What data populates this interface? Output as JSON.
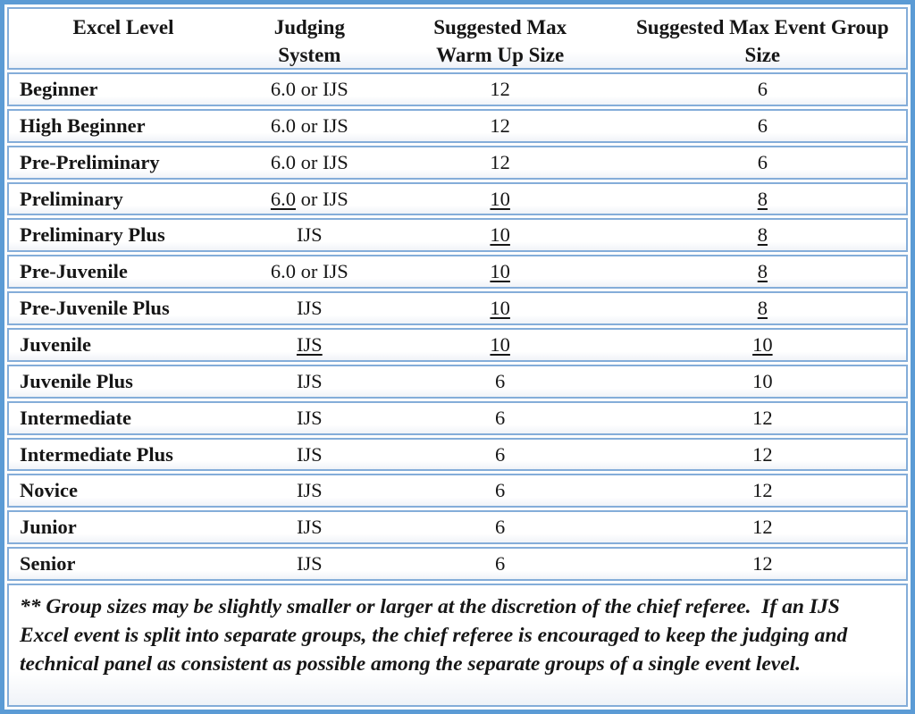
{
  "table": {
    "columns": [
      "Excel Level",
      "Judging\nSystem",
      "Suggested Max\nWarm Up Size",
      "Suggested Max Event Group\nSize"
    ],
    "rows": [
      {
        "level": "Beginner",
        "judging": [
          [
            "6.0 or IJS",
            false
          ]
        ],
        "warmup": [
          "12",
          false
        ],
        "group": [
          "6",
          false
        ]
      },
      {
        "level": "High Beginner",
        "judging": [
          [
            "6.0 or IJS",
            false
          ]
        ],
        "warmup": [
          "12",
          false
        ],
        "group": [
          "6",
          false
        ]
      },
      {
        "level": "Pre-Preliminary",
        "judging": [
          [
            "6.0 or IJS",
            false
          ]
        ],
        "warmup": [
          "12",
          false
        ],
        "group": [
          "6",
          false
        ]
      },
      {
        "level": "Preliminary",
        "judging": [
          [
            "6.0",
            true
          ],
          [
            " or IJS",
            false
          ]
        ],
        "warmup": [
          "10",
          true
        ],
        "group": [
          "8",
          true
        ]
      },
      {
        "level": "Preliminary Plus",
        "judging": [
          [
            "IJS",
            false
          ]
        ],
        "warmup": [
          "10",
          true
        ],
        "group": [
          "8",
          true
        ]
      },
      {
        "level": "Pre-Juvenile",
        "judging": [
          [
            "6.0 or IJS",
            false
          ]
        ],
        "warmup": [
          "10",
          true
        ],
        "group": [
          "8",
          true
        ]
      },
      {
        "level": "Pre-Juvenile Plus",
        "judging": [
          [
            "IJS",
            false
          ]
        ],
        "warmup": [
          "10",
          true
        ],
        "group": [
          "8",
          true
        ]
      },
      {
        "level": "Juvenile",
        "judging": [
          [
            "IJS",
            true
          ]
        ],
        "warmup": [
          "10",
          true
        ],
        "group": [
          "10",
          true
        ]
      },
      {
        "level": "Juvenile Plus",
        "judging": [
          [
            "IJS",
            false
          ]
        ],
        "warmup": [
          "6",
          false
        ],
        "group": [
          "10",
          false
        ]
      },
      {
        "level": "Intermediate",
        "judging": [
          [
            "IJS",
            false
          ]
        ],
        "warmup": [
          "6",
          false
        ],
        "group": [
          "12",
          false
        ]
      },
      {
        "level": "Intermediate Plus",
        "judging": [
          [
            "IJS",
            false
          ]
        ],
        "warmup": [
          "6",
          false
        ],
        "group": [
          "12",
          false
        ]
      },
      {
        "level": "Novice",
        "judging": [
          [
            "IJS",
            false
          ]
        ],
        "warmup": [
          "6",
          false
        ],
        "group": [
          "12",
          false
        ]
      },
      {
        "level": "Junior",
        "judging": [
          [
            "IJS",
            false
          ]
        ],
        "warmup": [
          "6",
          false
        ],
        "group": [
          "12",
          false
        ]
      },
      {
        "level": "Senior",
        "judging": [
          [
            "IJS",
            false
          ]
        ],
        "warmup": [
          "6",
          false
        ],
        "group": [
          "12",
          false
        ]
      }
    ]
  },
  "footnote": "** Group sizes may be slightly smaller or larger at the discretion of the chief referee.  If an IJS Excel event is split into separate groups, the chief referee is encouraged to keep the judging and technical panel as consistent as possible among the separate groups of a single event level.",
  "colors": {
    "outer_border": "#5b9bd5",
    "row_border": "#84add9",
    "text": "#161616"
  }
}
